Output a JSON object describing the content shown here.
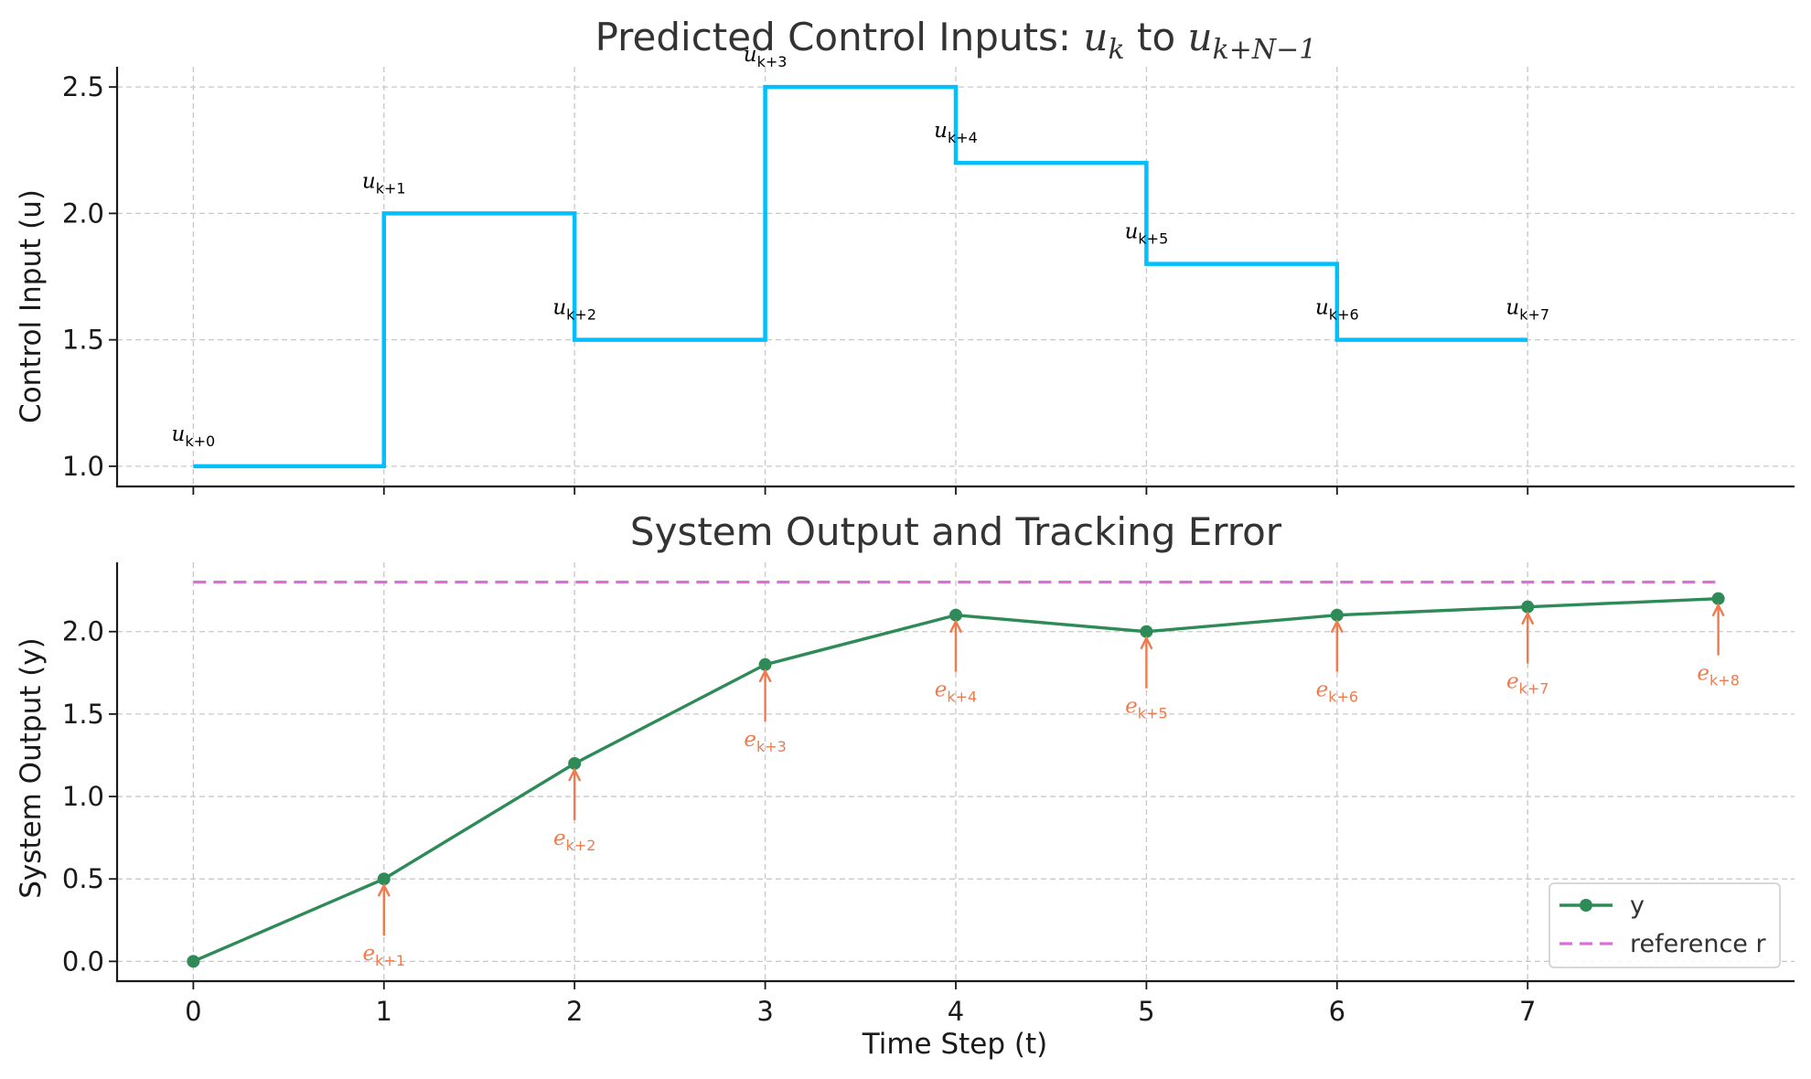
{
  "chart_data": [
    {
      "type": "line",
      "step": "post",
      "title": "Predicted Control Inputs: ",
      "title_math": [
        "u",
        "k",
        "u",
        "k+N−1"
      ],
      "title_connector": " to ",
      "xlabel": "",
      "ylabel": "Control Input (u)",
      "x": [
        0,
        1,
        2,
        3,
        4,
        5,
        6,
        7
      ],
      "values": [
        1.0,
        2.0,
        1.5,
        2.5,
        2.2,
        1.8,
        1.5,
        1.5
      ],
      "annotations": [
        "k+0",
        "k+1",
        "k+2",
        "k+3",
        "k+4",
        "k+5",
        "k+6",
        "k+7"
      ],
      "annotation_symbol": "u",
      "xlim": [
        -0.4,
        8.4
      ],
      "ylim": [
        0.92,
        2.58
      ],
      "yticks": [
        1.0,
        1.5,
        2.0,
        2.5
      ],
      "ytick_labels": [
        "1.0",
        "1.5",
        "2.0",
        "2.5"
      ],
      "grid": true,
      "color": "#00bfff"
    },
    {
      "type": "line",
      "title": "System Output and Tracking Error",
      "xlabel": "Time Step (t)",
      "ylabel": "System Output (y)",
      "x": [
        0,
        1,
        2,
        3,
        4,
        5,
        6,
        7,
        8
      ],
      "series": [
        {
          "name": "y",
          "values": [
            0.0,
            0.5,
            1.2,
            1.8,
            2.1,
            2.0,
            2.1,
            2.15,
            2.2
          ],
          "color": "#2e8b57",
          "style": "solid-markers"
        },
        {
          "name": "reference r",
          "values": [
            2.3,
            2.3,
            2.3,
            2.3,
            2.3,
            2.3,
            2.3,
            2.3,
            2.3
          ],
          "color": "#da70d6",
          "style": "dashed"
        }
      ],
      "error_annotations": [
        "k+1",
        "k+2",
        "k+3",
        "k+4",
        "k+5",
        "k+6",
        "k+7",
        "k+8"
      ],
      "error_symbol": "e",
      "error_color": "#ee7a4e",
      "xlim": [
        -0.4,
        8.4
      ],
      "ylim": [
        -0.12,
        2.42
      ],
      "xticks": [
        0,
        1,
        2,
        3,
        4,
        5,
        6,
        7
      ],
      "xtick_labels": [
        "0",
        "1",
        "2",
        "3",
        "4",
        "5",
        "6",
        "7"
      ],
      "yticks": [
        0.0,
        0.5,
        1.0,
        1.5,
        2.0
      ],
      "ytick_labels": [
        "0.0",
        "0.5",
        "1.0",
        "1.5",
        "2.0"
      ],
      "grid": true,
      "legend": "lower-right"
    }
  ]
}
